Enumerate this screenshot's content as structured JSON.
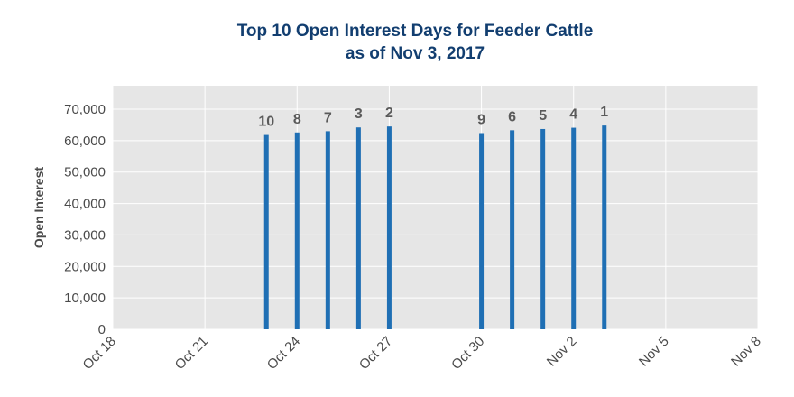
{
  "chart_data": {
    "type": "bar",
    "title": "Top 10 Open Interest Days for Feeder Cattle",
    "subtitle": "as of Nov 3, 2017",
    "xlabel": "",
    "ylabel": "Open Interest",
    "ylim": [
      0,
      70000
    ],
    "yticks": [
      0,
      10000,
      20000,
      30000,
      40000,
      50000,
      60000,
      70000
    ],
    "ytick_labels": [
      "0",
      "10,000",
      "20,000",
      "30,000",
      "40,000",
      "50,000",
      "60,000",
      "70,000"
    ],
    "xlim": [
      "2017-10-18",
      "2017-11-08"
    ],
    "xticks": [
      "2017-10-18",
      "2017-10-21",
      "2017-10-24",
      "2017-10-27",
      "2017-10-30",
      "2017-11-02",
      "2017-11-05",
      "2017-11-08"
    ],
    "xtick_labels": [
      "Oct 18",
      "Oct 21",
      "Oct 24",
      "Oct 27",
      "Oct 30",
      "Nov 2",
      "Nov 5",
      "Nov 8"
    ],
    "grid": true,
    "bar_color": "#1f6fb4",
    "background_color": "#e6e6e6",
    "data": [
      {
        "x": "2017-10-23",
        "y": 61800,
        "label": "10"
      },
      {
        "x": "2017-10-24",
        "y": 62600,
        "label": "8"
      },
      {
        "x": "2017-10-25",
        "y": 63000,
        "label": "7"
      },
      {
        "x": "2017-10-26",
        "y": 64200,
        "label": "3"
      },
      {
        "x": "2017-10-27",
        "y": 64500,
        "label": "2"
      },
      {
        "x": "2017-10-30",
        "y": 62400,
        "label": "9"
      },
      {
        "x": "2017-10-31",
        "y": 63300,
        "label": "6"
      },
      {
        "x": "2017-11-01",
        "y": 63700,
        "label": "5"
      },
      {
        "x": "2017-11-02",
        "y": 64100,
        "label": "4"
      },
      {
        "x": "2017-11-03",
        "y": 64800,
        "label": "1"
      }
    ]
  }
}
